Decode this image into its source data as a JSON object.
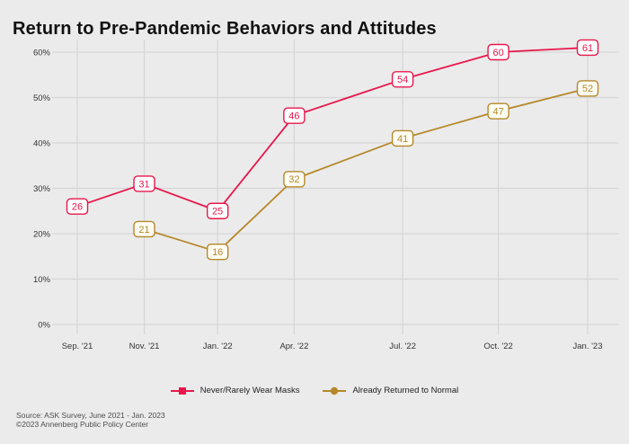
{
  "title": "Return to Pre-Pandemic Behaviors and Attitudes",
  "footer": {
    "line1": "Source: ASK Survey, June 2021 - Jan. 2023",
    "line2": "©2023 Annenberg Public Policy Center"
  },
  "colors": {
    "background": "#EBEBEB",
    "gridline": "#D6D6D6",
    "tick_text": "#333333",
    "title_text": "#111111",
    "footer_text": "#4D4D4D"
  },
  "chart_data": {
    "type": "line",
    "title": "Return to Pre-Pandemic Behaviors and Attitudes",
    "categories": [
      "Sep. '21",
      "Nov. '21",
      "Jan. '22",
      "Apr. '22",
      "Jul. '22",
      "Oct. '22",
      "Jan. '23"
    ],
    "x_months": [
      0,
      2.1,
      4.4,
      6.8,
      10.2,
      13.2,
      16
    ],
    "yticks": [
      0,
      10,
      20,
      30,
      40,
      50,
      60
    ],
    "ytick_suffix": "%",
    "ylim": [
      0,
      62
    ],
    "grid": true,
    "legend_position": "bottom",
    "xlabel": "",
    "ylabel": "",
    "series": [
      {
        "name": "Never/Rarely Wear Masks",
        "color": "#E8174B",
        "badge_fill": "#FFFFFF",
        "marker": "square",
        "values": [
          26,
          31,
          25,
          46,
          54,
          60,
          61
        ]
      },
      {
        "name": "Already Returned to Normal",
        "color": "#B5882A",
        "badge_fill": "#FFFDF3",
        "marker": "circle",
        "values": [
          null,
          21,
          16,
          32,
          41,
          47,
          52
        ]
      }
    ]
  }
}
